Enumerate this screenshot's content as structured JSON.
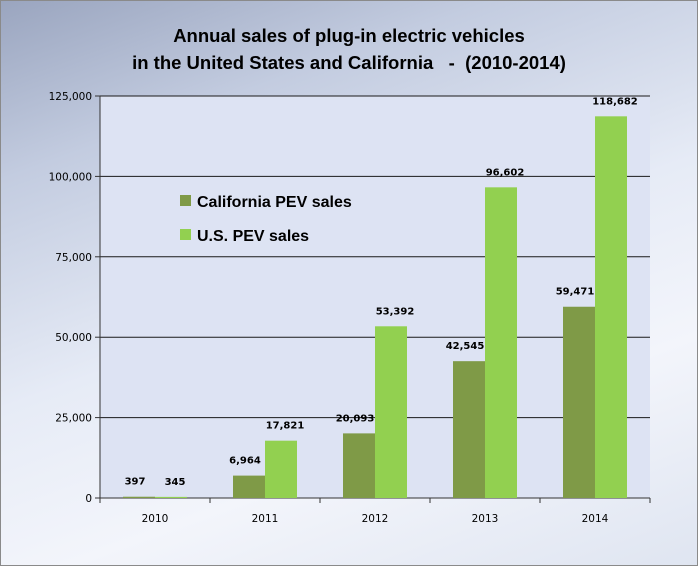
{
  "chart_data": {
    "type": "bar",
    "title_line1": "Annual sales of plug-in electric vehicles",
    "title_line2": "in the United States and California   -  (2010-2014)",
    "xlabel": "",
    "ylabel": "",
    "categories": [
      "2010",
      "2011",
      "2012",
      "2013",
      "2014"
    ],
    "series": [
      {
        "name": "California PEV sales",
        "color": "#7f9a47",
        "values": [
          397,
          6964,
          20093,
          42545,
          59471
        ],
        "labels": [
          "397",
          "6,964",
          "20,093",
          "42,545",
          "59,471"
        ]
      },
      {
        "name": "U.S. PEV sales",
        "color": "#92d050",
        "values": [
          345,
          17821,
          53392,
          96602,
          118682
        ],
        "labels": [
          "345",
          "17,821",
          "53,392",
          "96,602",
          "118,682"
        ]
      }
    ],
    "ylim": [
      0,
      125000
    ],
    "yticks": [
      0,
      25000,
      50000,
      75000,
      100000,
      125000
    ],
    "ytick_labels": [
      "0",
      "25,000",
      "50,000",
      "75,000",
      "100,000",
      "125,000"
    ],
    "grid": true,
    "legend_position": "top-left"
  }
}
